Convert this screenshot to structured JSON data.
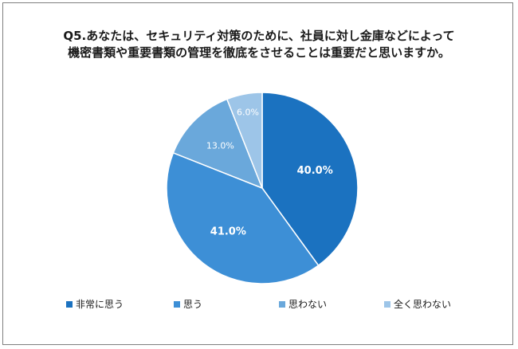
{
  "title": {
    "line1": "Q5.あなたは、セキュリティ対策のために、社員に対し金庫などによって",
    "line2": "機密書類や重要書類の管理を徹底をさせることは重要だと思いますか。"
  },
  "chart_data": {
    "type": "pie",
    "title": "Q5.あなたは、セキュリティ対策のために、社員に対し金庫などによって機密書類や重要書類の管理を徹底をさせることは重要だと思いますか。",
    "categories": [
      "非常に思う",
      "思う",
      "思わない",
      "全く思わない"
    ],
    "values": [
      40.0,
      41.0,
      13.0,
      6.0
    ],
    "labels": [
      "40.0%",
      "41.0%",
      "13.0%",
      "6.0%"
    ],
    "colors": [
      "#1b72c0",
      "#3d8fd6",
      "#6aa8db",
      "#9dc5e8"
    ],
    "legend_position": "bottom",
    "start_angle": "12 o'clock",
    "direction": "clockwise"
  }
}
